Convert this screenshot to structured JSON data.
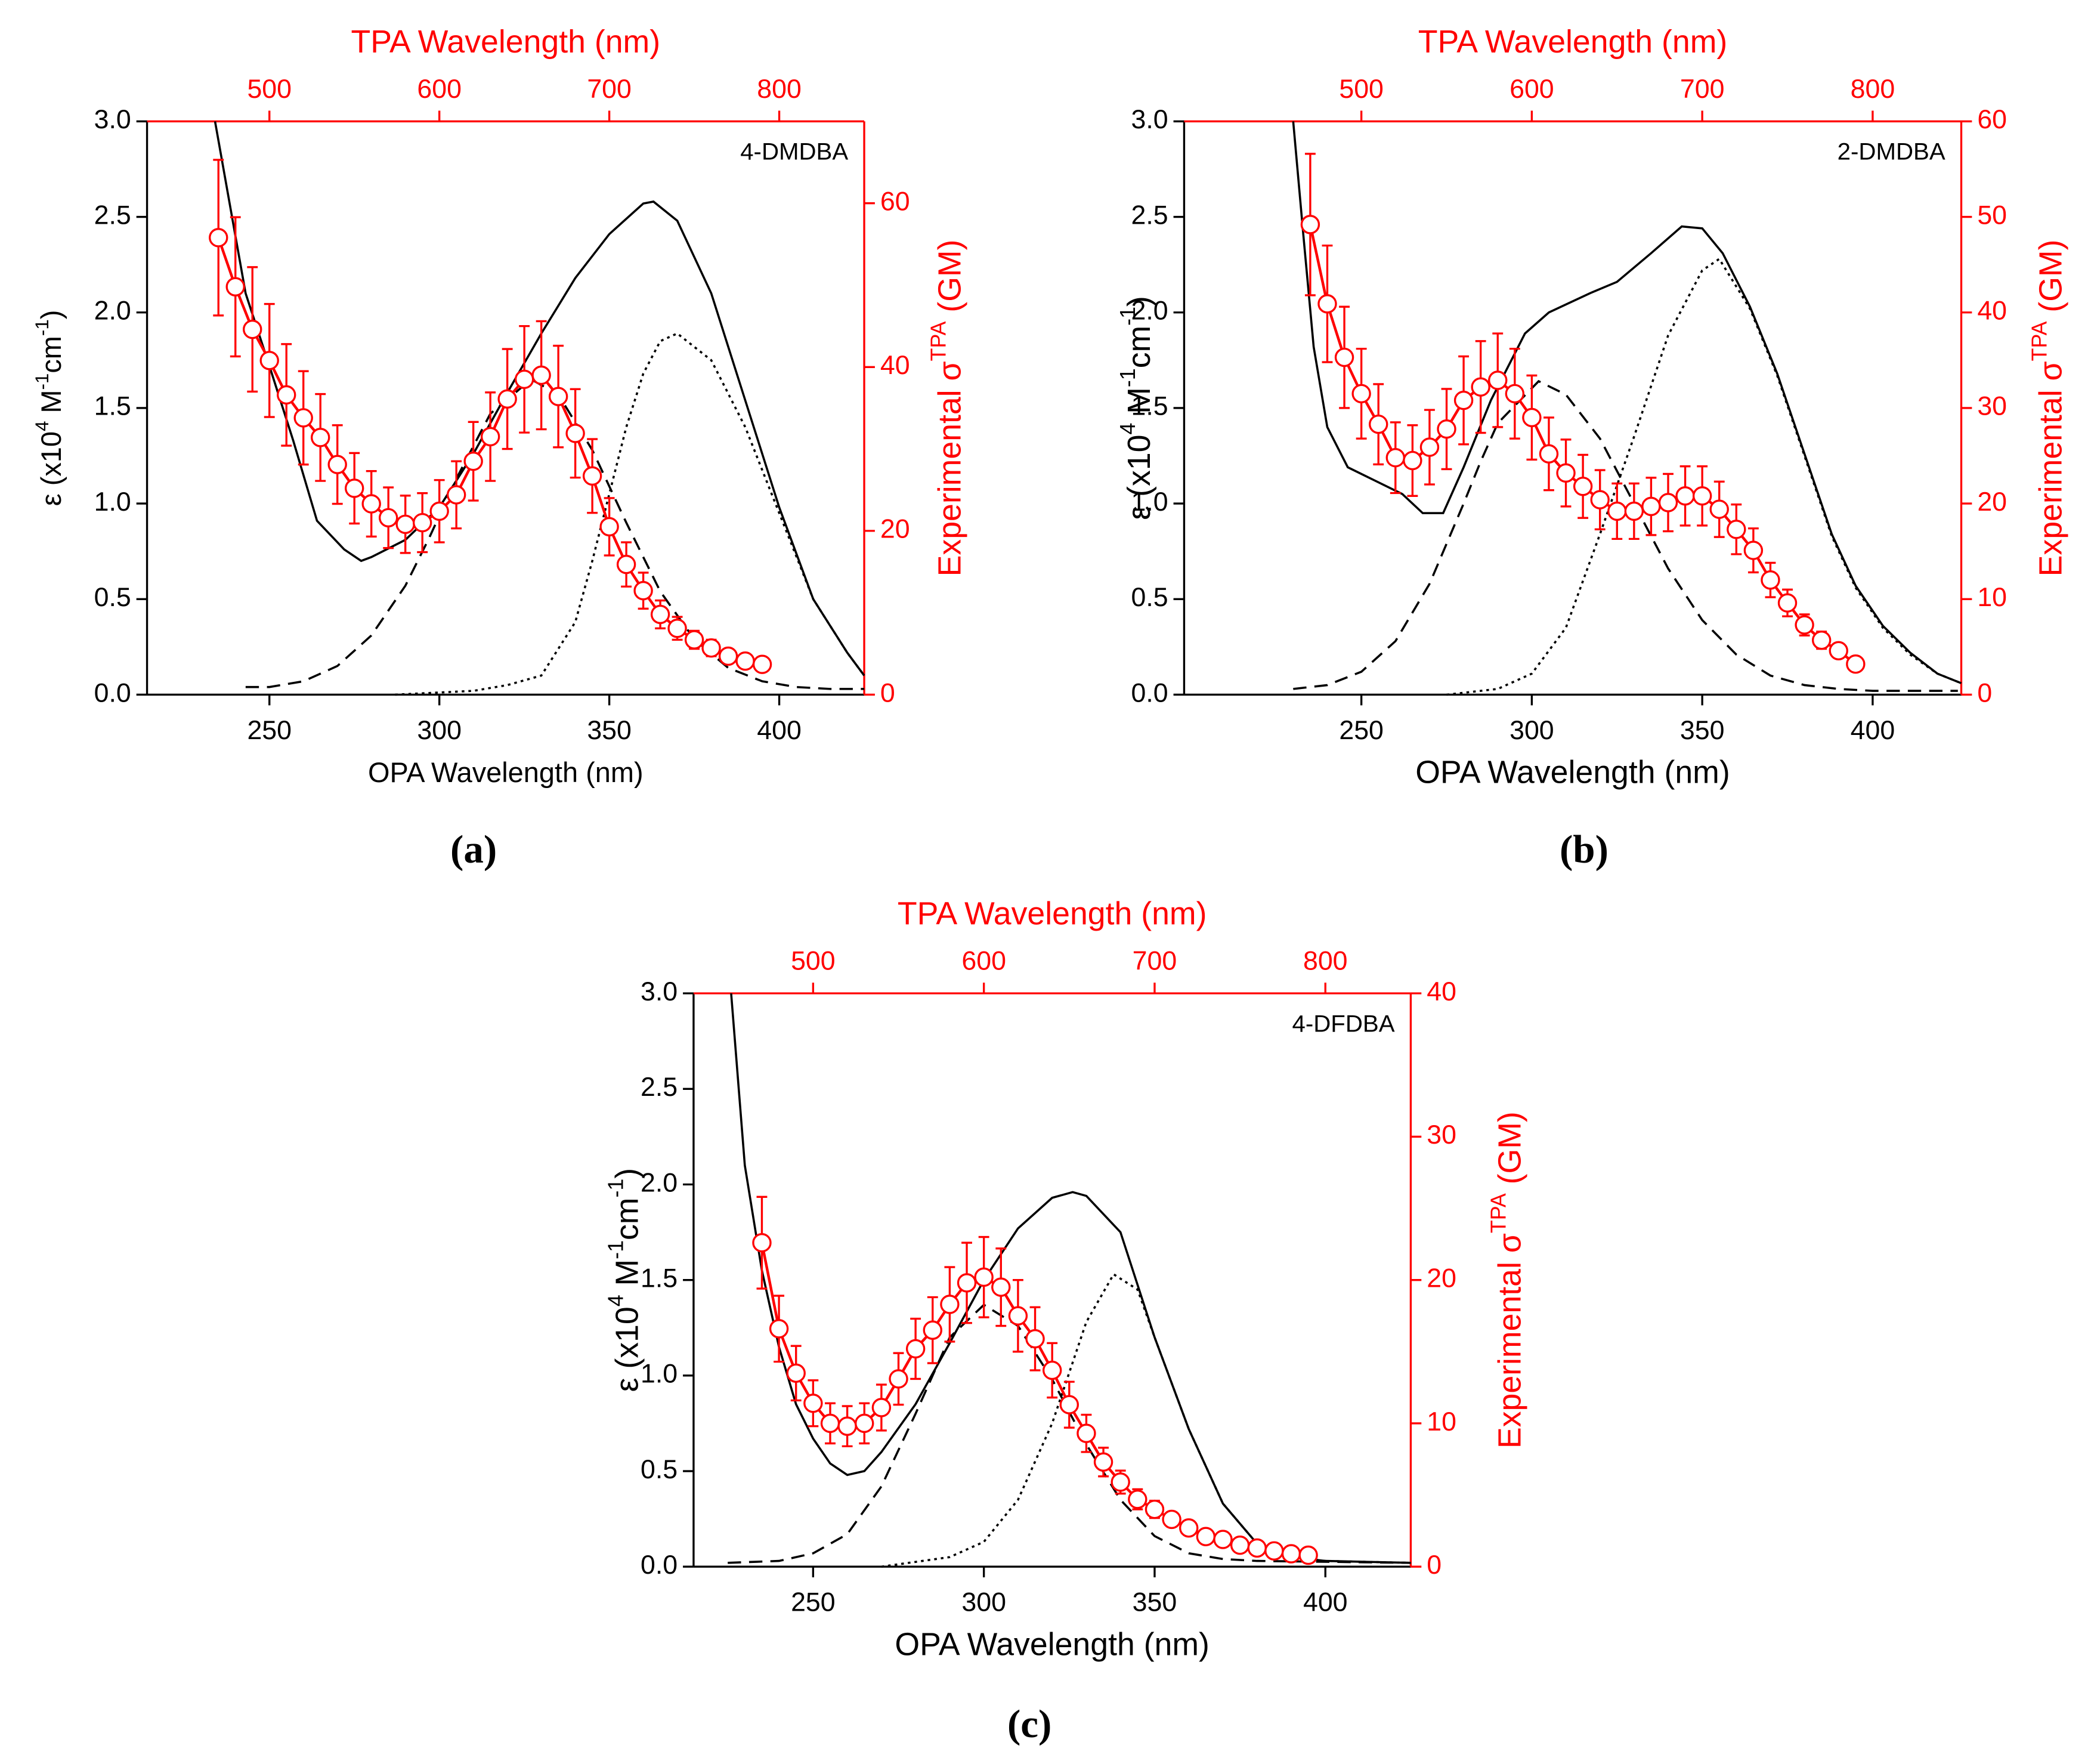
{
  "chart_data": [
    {
      "type": "line",
      "panel_label": "(a)",
      "annotation": "4-DMDBA",
      "xlabel": "OPA Wavelength (nm)",
      "x2label": "TPA Wavelength (nm)",
      "ylabel": [
        {
          "text": "ε (x10"
        },
        {
          "text": "4",
          "sup": true
        },
        {
          "text": " M"
        },
        {
          "text": "-1",
          "sup": true
        },
        {
          "text": "cm"
        },
        {
          "text": "-1",
          "sup": true
        },
        {
          "text": ")"
        }
      ],
      "y2label": [
        {
          "text": "Experimental σ"
        },
        {
          "text": "TPA",
          "sup": true
        },
        {
          "text": " (GM)"
        }
      ],
      "xlim": [
        214,
        425
      ],
      "xticks": [
        250,
        300,
        350,
        400
      ],
      "x2lim": [
        428,
        850
      ],
      "x2ticks": [
        500,
        600,
        700,
        800
      ],
      "ylim": [
        0,
        3
      ],
      "yticks": [
        {
          "value": 0,
          "label": "0.0"
        },
        0.5,
        {
          "value": 1,
          "label": "1.0"
        },
        1.5,
        {
          "value": 2,
          "label": "2.0"
        },
        2.5,
        {
          "value": 3,
          "label": "3.0"
        }
      ],
      "y2lim": [
        0,
        70
      ],
      "y2ticks": [
        0,
        20,
        40,
        60
      ],
      "y2color": "#ff0000",
      "series": [
        {
          "style": "solid",
          "color": "#000000",
          "x": [
            234,
            243,
            250,
            257,
            264,
            272,
            277,
            280,
            290,
            300,
            310,
            320,
            330,
            340,
            350,
            360,
            363,
            370,
            380,
            390,
            400,
            410,
            420,
            425
          ],
          "values": [
            3.0,
            2.1,
            1.72,
            1.33,
            0.91,
            0.76,
            0.7,
            0.72,
            0.81,
            0.98,
            1.26,
            1.58,
            1.89,
            2.18,
            2.41,
            2.57,
            2.58,
            2.48,
            2.1,
            1.54,
            0.98,
            0.5,
            0.22,
            0.1
          ]
        },
        {
          "style": "dashed",
          "color": "#000000",
          "x": [
            243,
            250,
            260,
            270,
            280,
            290,
            297,
            305,
            315,
            327,
            335,
            345,
            355,
            365,
            375,
            385,
            395,
            405,
            415,
            425
          ],
          "values": [
            0.04,
            0.04,
            0.07,
            0.15,
            0.31,
            0.57,
            0.82,
            1.13,
            1.47,
            1.65,
            1.57,
            1.28,
            0.9,
            0.54,
            0.29,
            0.14,
            0.07,
            0.04,
            0.03,
            0.03
          ]
        },
        {
          "style": "dotted",
          "color": "#000000",
          "x": [
            287,
            310,
            320,
            330,
            340,
            345,
            350,
            355,
            360,
            365,
            370,
            380,
            390,
            400,
            410,
            420,
            425
          ],
          "values": [
            0.0,
            0.02,
            0.05,
            0.1,
            0.38,
            0.7,
            1.05,
            1.4,
            1.68,
            1.85,
            1.89,
            1.75,
            1.4,
            0.95,
            0.5,
            0.22,
            0.1
          ]
        },
        {
          "style": "solid",
          "color": "#ff0000",
          "axis": "y2",
          "marker": "circle",
          "x": [
            235,
            240,
            245,
            250,
            255,
            260,
            265,
            270,
            275,
            280,
            285,
            290,
            295,
            300,
            305,
            310,
            315,
            320,
            325,
            330,
            335,
            340,
            345,
            350,
            355,
            360,
            365,
            370,
            375,
            380,
            385,
            390,
            395
          ],
          "values": [
            55.8,
            49.8,
            44.6,
            40.8,
            36.6,
            33.8,
            31.4,
            28.1,
            25.2,
            23.3,
            21.6,
            20.8,
            21.0,
            22.4,
            24.4,
            28.5,
            31.5,
            36.1,
            38.5,
            39.0,
            36.4,
            31.9,
            26.7,
            20.5,
            15.9,
            12.7,
            9.8,
            8.1,
            6.7,
            5.7,
            4.7,
            4.1,
            3.7
          ],
          "errors": [
            9.5,
            8.5,
            7.6,
            6.9,
            6.2,
            5.7,
            5.3,
            4.8,
            4.3,
            4.0,
            3.7,
            3.5,
            3.6,
            3.8,
            4.1,
            4.8,
            5.4,
            6.1,
            6.5,
            6.6,
            6.2,
            5.4,
            4.5,
            3.5,
            2.7,
            2.2,
            1.7,
            1.4,
            1.1,
            1.0,
            0.8,
            0.7,
            0.6
          ]
        }
      ]
    },
    {
      "type": "line",
      "panel_label": "(b)",
      "annotation": "2-DMDBA",
      "xlabel": "OPA Wavelength (nm)",
      "x2label": "TPA Wavelength (nm)",
      "ylabel": [
        {
          "text": "ε (x10"
        },
        {
          "text": "4",
          "sup": true
        },
        {
          "text": " M"
        },
        {
          "text": "-1",
          "sup": true
        },
        {
          "text": "cm"
        },
        {
          "text": "-1",
          "sup": true
        },
        {
          "text": ")"
        }
      ],
      "y2label": [
        {
          "text": "Experimental σ"
        },
        {
          "text": "TPA",
          "sup": true
        },
        {
          "text": " (GM)"
        }
      ],
      "xlim": [
        198,
        426
      ],
      "xticks": [
        250,
        300,
        350,
        400
      ],
      "x2lim": [
        396,
        852
      ],
      "x2ticks": [
        500,
        600,
        700,
        800
      ],
      "ylim": [
        0,
        3
      ],
      "yticks": [
        {
          "value": 0,
          "label": "0.0"
        },
        0.5,
        {
          "value": 1,
          "label": "1.0"
        },
        1.5,
        {
          "value": 2,
          "label": "2.0"
        },
        2.5,
        {
          "value": 3,
          "label": "3.0"
        }
      ],
      "y2lim": [
        0,
        60
      ],
      "y2ticks": [
        0,
        10,
        20,
        30,
        40,
        50,
        60
      ],
      "y2color": "#ff0000",
      "series": [
        {
          "style": "solid",
          "color": "#000000",
          "x": [
            230,
            233,
            236,
            240,
            246,
            254,
            262,
            268,
            274,
            280,
            288,
            298,
            305,
            317,
            325,
            335,
            344,
            350,
            356,
            364,
            372,
            380,
            388,
            395,
            403,
            411,
            419,
            426
          ],
          "values": [
            3.0,
            2.4,
            1.82,
            1.4,
            1.19,
            1.12,
            1.05,
            0.95,
            0.95,
            1.19,
            1.54,
            1.89,
            2.0,
            2.1,
            2.16,
            2.31,
            2.45,
            2.44,
            2.31,
            2.03,
            1.68,
            1.26,
            0.84,
            0.57,
            0.36,
            0.22,
            0.11,
            0.06
          ]
        },
        {
          "style": "dashed",
          "color": "#000000",
          "x": [
            230,
            240,
            250,
            260,
            270,
            280,
            285,
            290,
            302,
            310,
            320,
            330,
            340,
            350,
            360,
            370,
            380,
            390,
            400,
            425
          ],
          "values": [
            0.03,
            0.05,
            0.12,
            0.28,
            0.58,
            1.0,
            1.22,
            1.42,
            1.64,
            1.57,
            1.34,
            1.0,
            0.66,
            0.39,
            0.21,
            0.1,
            0.05,
            0.03,
            0.02,
            0.02
          ]
        },
        {
          "style": "dotted",
          "color": "#000000",
          "x": [
            275,
            290,
            300,
            310,
            320,
            330,
            340,
            350,
            355,
            364,
            372,
            380,
            388,
            395,
            403,
            411,
            419,
            426
          ],
          "values": [
            0.0,
            0.03,
            0.11,
            0.35,
            0.84,
            1.35,
            1.88,
            2.22,
            2.28,
            2.02,
            1.67,
            1.25,
            0.83,
            0.56,
            0.35,
            0.21,
            0.11,
            0.06
          ]
        },
        {
          "style": "solid",
          "color": "#ff0000",
          "axis": "y2",
          "marker": "circle",
          "x": [
            235,
            240,
            245,
            250,
            255,
            260,
            265,
            270,
            275,
            280,
            285,
            290,
            295,
            300,
            305,
            310,
            315,
            320,
            325,
            330,
            335,
            340,
            345,
            350,
            355,
            360,
            365,
            370,
            375,
            380,
            385,
            390,
            395
          ],
          "values": [
            49.2,
            40.9,
            35.3,
            31.5,
            28.3,
            24.8,
            24.5,
            25.9,
            27.8,
            30.8,
            32.2,
            32.9,
            31.5,
            29.0,
            25.2,
            23.2,
            21.8,
            20.4,
            19.2,
            19.2,
            19.7,
            20.1,
            20.8,
            20.8,
            19.4,
            17.3,
            15.1,
            12.0,
            9.6,
            7.3,
            5.7,
            4.6,
            3.2
          ],
          "errors": [
            7.4,
            6.1,
            5.3,
            4.7,
            4.2,
            3.7,
            3.7,
            3.9,
            4.2,
            4.6,
            4.8,
            4.9,
            4.7,
            4.4,
            3.8,
            3.5,
            3.3,
            3.1,
            2.9,
            2.9,
            3.0,
            3.0,
            3.1,
            3.1,
            2.9,
            2.6,
            2.3,
            1.8,
            1.4,
            1.1,
            0.9,
            0.7,
            0.5
          ]
        }
      ]
    },
    {
      "type": "line",
      "panel_label": "(c)",
      "annotation": "4-DFDBA",
      "xlabel": "OPA Wavelength (nm)",
      "x2label": "TPA Wavelength (nm)",
      "ylabel": [
        {
          "text": "ε (x10"
        },
        {
          "text": "4",
          "sup": true
        },
        {
          "text": " M"
        },
        {
          "text": "-1",
          "sup": true
        },
        {
          "text": "cm"
        },
        {
          "text": "-1",
          "sup": true
        },
        {
          "text": ")"
        }
      ],
      "y2label": [
        {
          "text": "Experimental σ"
        },
        {
          "text": "TPA",
          "sup": true
        },
        {
          "text": " (GM)"
        }
      ],
      "xlim": [
        215,
        425
      ],
      "xticks": [
        250,
        300,
        350,
        400
      ],
      "x2lim": [
        430,
        850
      ],
      "x2ticks": [
        500,
        600,
        700,
        800
      ],
      "ylim": [
        0,
        3
      ],
      "yticks": [
        {
          "value": 0,
          "label": "0.0"
        },
        0.5,
        {
          "value": 1,
          "label": "1.0"
        },
        1.5,
        {
          "value": 2,
          "label": "2.0"
        },
        2.5,
        {
          "value": 3,
          "label": "3.0"
        }
      ],
      "y2lim": [
        0,
        40
      ],
      "y2ticks": [
        0,
        10,
        20,
        30,
        40
      ],
      "y2color": "#ff0000",
      "series": [
        {
          "style": "solid",
          "color": "#000000",
          "x": [
            226,
            230,
            235,
            240,
            245,
            250,
            255,
            260,
            265,
            270,
            280,
            290,
            300,
            310,
            320,
            326,
            330,
            340,
            350,
            360,
            370,
            380,
            390,
            400,
            425
          ],
          "values": [
            3.0,
            2.1,
            1.55,
            1.15,
            0.85,
            0.67,
            0.54,
            0.48,
            0.5,
            0.6,
            0.85,
            1.17,
            1.5,
            1.77,
            1.93,
            1.96,
            1.94,
            1.75,
            1.2,
            0.72,
            0.33,
            0.12,
            0.05,
            0.03,
            0.02
          ]
        },
        {
          "style": "dashed",
          "color": "#000000",
          "x": [
            225,
            240,
            250,
            260,
            270,
            280,
            290,
            300,
            310,
            320,
            330,
            340,
            350,
            360,
            370,
            380,
            425
          ],
          "values": [
            0.02,
            0.03,
            0.07,
            0.17,
            0.42,
            0.8,
            1.2,
            1.37,
            1.26,
            0.98,
            0.64,
            0.35,
            0.16,
            0.07,
            0.04,
            0.03,
            0.02
          ]
        },
        {
          "style": "dotted",
          "color": "#000000",
          "x": [
            270,
            290,
            300,
            310,
            320,
            330,
            338,
            345,
            350,
            360,
            370,
            380,
            390,
            400,
            425
          ],
          "values": [
            0.0,
            0.05,
            0.13,
            0.35,
            0.75,
            1.28,
            1.53,
            1.45,
            1.2,
            0.72,
            0.33,
            0.12,
            0.05,
            0.03,
            0.02
          ]
        },
        {
          "style": "solid",
          "color": "#ff0000",
          "axis": "y2",
          "marker": "circle",
          "x": [
            235,
            240,
            245,
            250,
            255,
            260,
            265,
            270,
            275,
            280,
            285,
            290,
            295,
            300,
            305,
            310,
            315,
            320,
            325,
            330,
            335,
            340,
            345,
            350,
            355,
            360,
            365,
            370,
            375,
            380,
            385,
            390,
            395
          ],
          "values": [
            22.6,
            16.6,
            13.5,
            11.4,
            10.0,
            9.8,
            10.0,
            11.1,
            13.1,
            15.2,
            16.5,
            18.3,
            19.8,
            20.2,
            19.5,
            17.5,
            15.9,
            13.7,
            11.3,
            9.3,
            7.3,
            5.9,
            4.7,
            4.0,
            3.3,
            2.7,
            2.1,
            1.9,
            1.5,
            1.3,
            1.1,
            0.9,
            0.8
          ],
          "errors": [
            3.2,
            2.3,
            1.9,
            1.6,
            1.4,
            1.4,
            1.4,
            1.6,
            1.8,
            2.1,
            2.3,
            2.6,
            2.8,
            2.8,
            2.7,
            2.5,
            2.2,
            1.9,
            1.6,
            1.3,
            1.0,
            0.8,
            0.7,
            0.6,
            0.5,
            0.4,
            0.3,
            0.3,
            0.2,
            0.2,
            0.2,
            0.1,
            0.1
          ]
        }
      ]
    }
  ]
}
